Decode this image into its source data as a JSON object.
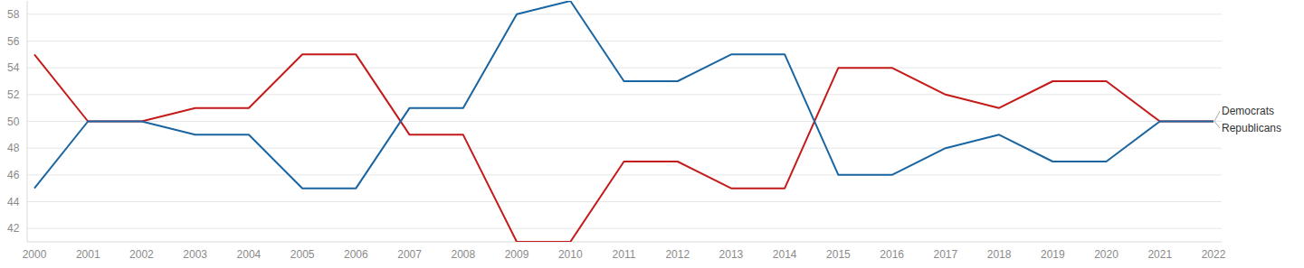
{
  "chart_data": {
    "type": "line",
    "categories": [
      "2000",
      "2001",
      "2002",
      "2003",
      "2004",
      "2005",
      "2006",
      "2007",
      "2008",
      "2009",
      "2010",
      "2011",
      "2012",
      "2013",
      "2014",
      "2015",
      "2016",
      "2017",
      "2018",
      "2019",
      "2020",
      "2021",
      "2022"
    ],
    "series": [
      {
        "name": "Democrats",
        "color": "#1a65a0",
        "values": [
          45,
          50,
          50,
          49,
          49,
          45,
          45,
          51,
          51,
          58,
          59,
          53,
          53,
          55,
          55,
          46,
          46,
          48,
          49,
          47,
          47,
          50,
          50
        ]
      },
      {
        "name": "Republicans",
        "color": "#c41a1a",
        "values": [
          55,
          50,
          50,
          51,
          51,
          55,
          55,
          49,
          49,
          41,
          41,
          47,
          47,
          45,
          45,
          54,
          54,
          52,
          51,
          53,
          53,
          50,
          50
        ]
      }
    ],
    "ylim": [
      41,
      59
    ],
    "yticks": [
      42,
      44,
      46,
      48,
      50,
      52,
      54,
      56,
      58
    ],
    "grid": true,
    "legend": "right"
  }
}
